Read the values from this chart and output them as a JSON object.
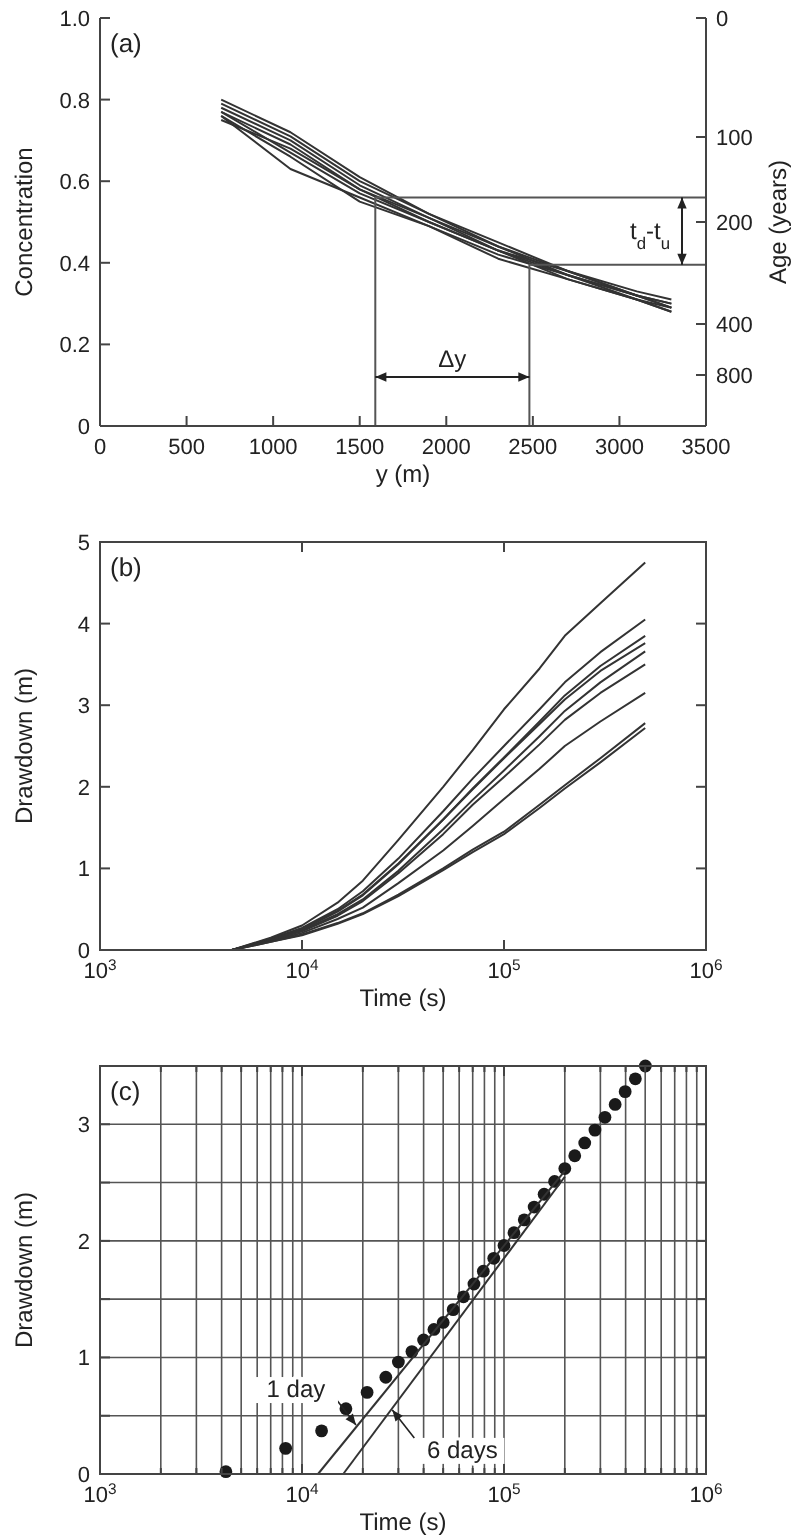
{
  "chart_data": [
    {
      "type": "line",
      "xlabel": "y (m)",
      "ylabel": "Concentration",
      "y2label": "Age (years)",
      "xlim": [
        0,
        3500
      ],
      "xticks": [
        0,
        500,
        1000,
        1500,
        2000,
        2500,
        3000,
        3500
      ],
      "ylim": [
        0,
        1
      ],
      "yticks": [
        0,
        0.2,
        0.4,
        0.6,
        0.8,
        {
          "value": 1,
          "label": "1.0"
        }
      ],
      "y2_categories": [
        "0",
        null,
        null,
        null,
        null,
        null,
        null,
        "100",
        null,
        null,
        null,
        null,
        "200",
        null,
        null,
        null,
        null,
        null,
        "400",
        null,
        null,
        "800",
        null,
        null,
        null
      ],
      "annotations": [
        "(a)",
        "Δy",
        "t$_{d}$-t$_{u}$"
      ],
      "x": [
        700,
        1100,
        1500,
        1900,
        2300,
        2700,
        3100,
        3300
      ],
      "series": [
        {
          "color": "#333333",
          "values": [
            0.8,
            0.72,
            0.61,
            0.52,
            0.45,
            0.38,
            0.33,
            0.31
          ]
        },
        {
          "color": "#333333",
          "values": [
            0.79,
            0.71,
            0.6,
            0.52,
            0.44,
            0.38,
            0.32,
            0.3
          ]
        },
        {
          "color": "#333333",
          "values": [
            0.78,
            0.7,
            0.59,
            0.51,
            0.44,
            0.37,
            0.32,
            0.29
          ]
        },
        {
          "color": "#333333",
          "values": [
            0.77,
            0.67,
            0.57,
            0.5,
            0.43,
            0.37,
            0.31,
            0.29
          ]
        },
        {
          "color": "#333333",
          "values": [
            0.76,
            0.63,
            0.56,
            0.49,
            0.42,
            0.37,
            0.32,
            0.3
          ]
        },
        {
          "color": "#333333",
          "values": [
            0.76,
            0.66,
            0.55,
            0.49,
            0.41,
            0.36,
            0.31,
            0.28
          ]
        },
        {
          "color": "#333333",
          "values": [
            0.75,
            0.68,
            0.58,
            0.5,
            0.43,
            0.38,
            0.32,
            0.29
          ]
        },
        {
          "color": "#333333",
          "values": [
            0.77,
            0.69,
            0.58,
            0.51,
            0.43,
            0.36,
            0.31,
            0.28
          ]
        },
        {
          "color": "#555555",
          "x": [
            1590,
            1590,
            3500
          ],
          "values": [
            0,
            0.56,
            0.56
          ]
        },
        {
          "color": "#555555",
          "x": [
            2480,
            2480,
            3500
          ],
          "values": [
            0,
            0.395,
            0.395
          ]
        }
      ]
    },
    {
      "type": "line",
      "log": "x",
      "xlabel": "Time (s)",
      "ylabel": "Drawdown (m)",
      "xlim": [
        1000,
        1000000
      ],
      "xticks": [
        {
          "value": 1000,
          "label": "10$^{3}$"
        },
        {
          "value": 10000,
          "label": "10$^{4}$"
        },
        {
          "value": 100000,
          "label": "10$^{5}$"
        },
        {
          "value": 1000000,
          "label": "10$^{6}$"
        }
      ],
      "ylim": [
        0,
        5
      ],
      "yticks": [
        0,
        1,
        2,
        3,
        4,
        5
      ],
      "annotations": [
        "(b)"
      ],
      "x": [
        4500,
        7000,
        10000,
        15000,
        20000,
        30000,
        50000,
        70000,
        100000,
        150000,
        200000,
        300000,
        500000
      ],
      "series": [
        {
          "color": "#333333",
          "values": [
            0,
            0.15,
            0.3,
            0.58,
            0.85,
            1.35,
            2.0,
            2.45,
            2.95,
            3.45,
            3.85,
            4.25,
            4.75
          ]
        },
        {
          "color": "#333333",
          "values": [
            0,
            0.14,
            0.27,
            0.5,
            0.72,
            1.12,
            1.7,
            2.1,
            2.5,
            2.95,
            3.28,
            3.65,
            4.05
          ]
        },
        {
          "color": "#333333",
          "values": [
            0,
            0.13,
            0.26,
            0.48,
            0.68,
            1.06,
            1.6,
            1.98,
            2.36,
            2.8,
            3.12,
            3.48,
            3.85
          ]
        },
        {
          "color": "#333333",
          "values": [
            0,
            0.13,
            0.25,
            0.47,
            0.67,
            1.05,
            1.6,
            1.97,
            2.35,
            2.77,
            3.07,
            3.42,
            3.76
          ]
        },
        {
          "color": "#333333",
          "values": [
            0,
            0.12,
            0.24,
            0.44,
            0.62,
            0.97,
            1.48,
            1.84,
            2.2,
            2.62,
            2.93,
            3.28,
            3.66
          ]
        },
        {
          "color": "#333333",
          "values": [
            0,
            0.12,
            0.23,
            0.42,
            0.6,
            0.94,
            1.42,
            1.78,
            2.12,
            2.52,
            2.82,
            3.15,
            3.5
          ]
        },
        {
          "color": "#333333",
          "values": [
            0,
            0.11,
            0.21,
            0.38,
            0.52,
            0.82,
            1.22,
            1.52,
            1.85,
            2.22,
            2.5,
            2.8,
            3.15
          ]
        },
        {
          "color": "#333333",
          "values": [
            0,
            0.1,
            0.19,
            0.33,
            0.45,
            0.68,
            1.0,
            1.23,
            1.45,
            1.78,
            2.02,
            2.35,
            2.78
          ]
        },
        {
          "color": "#333333",
          "values": [
            0,
            0.1,
            0.18,
            0.32,
            0.44,
            0.66,
            0.98,
            1.2,
            1.42,
            1.74,
            1.98,
            2.3,
            2.72
          ]
        }
      ]
    },
    {
      "type": "scatter",
      "log": "x",
      "xlabel": "Time (s)",
      "ylabel": "Drawdown (m)",
      "grid": true,
      "xlim": [
        1000,
        1000000
      ],
      "xticks": [
        {
          "value": 1000,
          "label": "10$^{3}$"
        },
        {
          "value": 2000,
          "label": null
        },
        {
          "value": 3000,
          "label": null
        },
        {
          "value": 4000,
          "label": null
        },
        {
          "value": 5000,
          "label": null
        },
        {
          "value": 6000,
          "label": null
        },
        {
          "value": 7000,
          "label": null
        },
        {
          "value": 8000,
          "label": null
        },
        {
          "value": 9000,
          "label": null
        },
        {
          "value": 10000,
          "label": "10$^{4}$"
        },
        {
          "value": 20000,
          "label": null
        },
        {
          "value": 30000,
          "label": null
        },
        {
          "value": 40000,
          "label": null
        },
        {
          "value": 50000,
          "label": null
        },
        {
          "value": 60000,
          "label": null
        },
        {
          "value": 70000,
          "label": null
        },
        {
          "value": 80000,
          "label": null
        },
        {
          "value": 90000,
          "label": null
        },
        {
          "value": 100000,
          "label": "10$^{5}$"
        },
        {
          "value": 200000,
          "label": null
        },
        {
          "value": 300000,
          "label": null
        },
        {
          "value": 400000,
          "label": null
        },
        {
          "value": 500000,
          "label": null
        },
        {
          "value": 600000,
          "label": null
        },
        {
          "value": 700000,
          "label": null
        },
        {
          "value": 800000,
          "label": null
        },
        {
          "value": 900000,
          "label": null
        },
        {
          "value": 1000000,
          "label": "10$^{6}$"
        }
      ],
      "ylim": [
        0,
        3.5
      ],
      "yticks": [
        0,
        {
          "value": 0.5,
          "label": null
        },
        1,
        {
          "value": 1.5,
          "label": null
        },
        2,
        {
          "value": 2.5,
          "label": null
        },
        3
      ],
      "annotations": [
        "(c)",
        {
          "text": "1 day",
          "x": 18500,
          "y": 0.42
        },
        {
          "text": "6 days",
          "x": 28000,
          "y": 0.55
        }
      ],
      "series": [
        {
          "marker": "circle",
          "color": "#1a1a1a",
          "x": [
            4200,
            8300,
            12500,
            16500,
            21000,
            26000,
            30000,
            35000,
            40000,
            45000,
            50000,
            56000,
            63000,
            71000,
            79000,
            89000,
            100000,
            112000,
            126000,
            141000,
            158000,
            178000,
            200000,
            224000,
            251000,
            282000,
            316000,
            355000,
            398000,
            447000,
            501000
          ],
          "values": [
            0.02,
            0.22,
            0.37,
            0.56,
            0.7,
            0.83,
            0.96,
            1.05,
            1.15,
            1.24,
            1.3,
            1.41,
            1.52,
            1.63,
            1.74,
            1.85,
            1.96,
            2.07,
            2.18,
            2.29,
            2.4,
            2.51,
            2.62,
            2.73,
            2.84,
            2.95,
            3.06,
            3.17,
            3.28,
            3.39,
            3.5
          ]
        },
        {
          "type": "line",
          "color": "#333333",
          "x": [
            12000,
            200000
          ],
          "values": [
            0,
            2.6
          ]
        },
        {
          "type": "line",
          "color": "#333333",
          "x": [
            16000,
            200000
          ],
          "values": [
            0,
            2.55
          ]
        }
      ]
    }
  ]
}
